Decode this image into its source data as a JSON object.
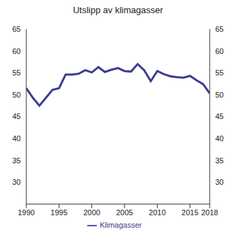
{
  "chart_data": {
    "type": "line",
    "title": "Utslipp av klimagasser",
    "x": [
      1990,
      1991,
      1992,
      1993,
      1994,
      1995,
      1996,
      1997,
      1998,
      1999,
      2000,
      2001,
      2002,
      2003,
      2004,
      2005,
      2006,
      2007,
      2008,
      2009,
      2010,
      2011,
      2012,
      2013,
      2014,
      2015,
      2016,
      2017,
      2018
    ],
    "series": [
      {
        "name": "Klimagasser",
        "color": "#3b3c8f",
        "values": [
          51.5,
          49.3,
          47.5,
          49.3,
          51.1,
          51.5,
          54.6,
          54.6,
          54.8,
          55.6,
          55.1,
          56.3,
          55.2,
          55.7,
          56.1,
          55.4,
          55.3,
          57.0,
          55.6,
          53.1,
          55.4,
          54.7,
          54.2,
          54.0,
          53.9,
          54.3,
          53.3,
          52.4,
          50.3
        ]
      }
    ],
    "xlim": [
      1990,
      2018
    ],
    "xticks": [
      1990,
      1995,
      2000,
      2005,
      2010,
      2015,
      2018
    ],
    "ylim": [
      25,
      65
    ],
    "yticks": [
      30,
      35,
      40,
      45,
      50,
      55,
      60,
      65
    ],
    "grid": false,
    "legend": "bottom"
  }
}
